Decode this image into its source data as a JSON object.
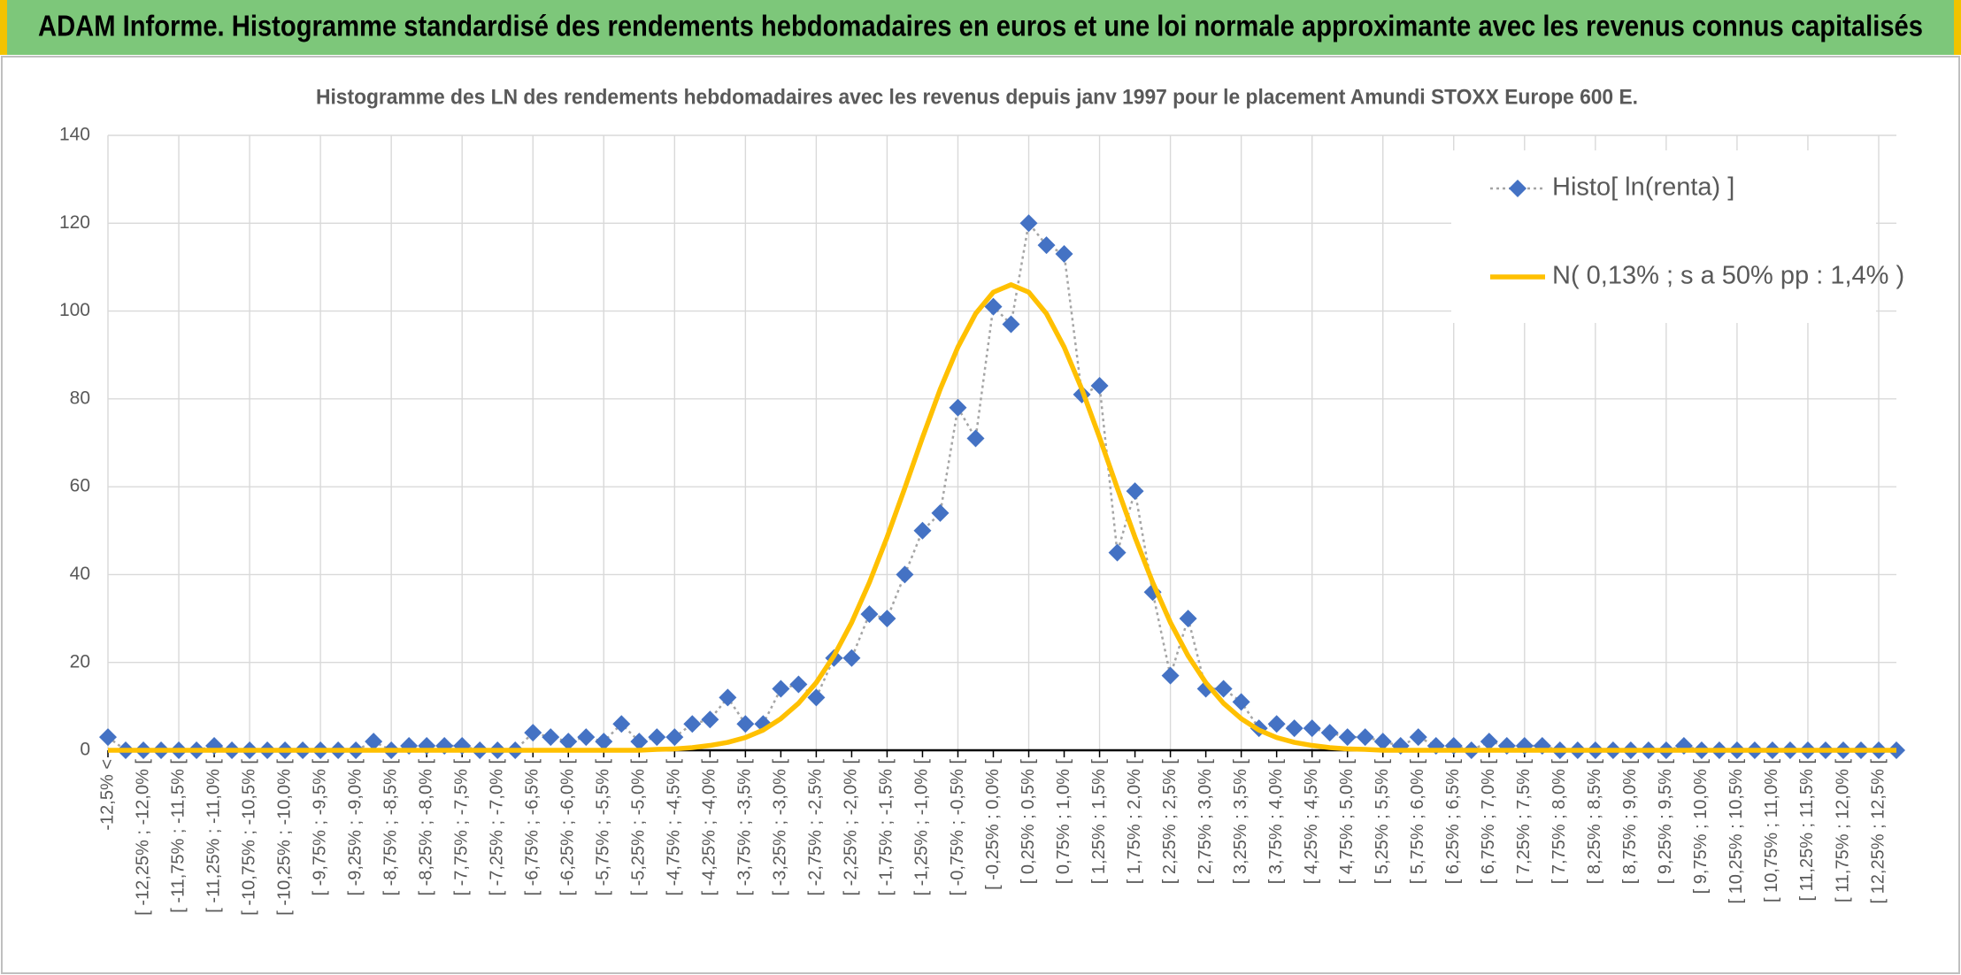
{
  "header": {
    "title": "ADAM Informe. Histogramme standardisé des rendements hebdomadaires en euros et une loi normale approximante avec les revenus connus capitalisés"
  },
  "chart_data": {
    "type": "line",
    "title": "Histogramme des LN des rendements hebdomadaires avec les revenus depuis janv 1997 pour le placement Amundi STOXX Europe 600 E.",
    "categories": [
      "-12,5% <",
      null,
      "[ -12,25% ; -12,0% [",
      null,
      "[ -11,75% ; -11,5% [",
      null,
      "[ -11,25% ; -11,0% [",
      null,
      "[ -10,75% ; -10,5% [",
      null,
      "[ -10,25% ; -10,0% [",
      null,
      "[ -9,75% ; -9,5% [",
      null,
      "[ -9,25% ; -9,0% [",
      null,
      "[ -8,75% ; -8,5% [",
      null,
      "[ -8,25% ; -8,0% [",
      null,
      "[ -7,75% ; -7,5% [",
      null,
      "[ -7,25% ; -7,0% [",
      null,
      "[ -6,75% ; -6,5% [",
      null,
      "[ -6,25% ; -6,0% [",
      null,
      "[ -5,75% ; -5,5% [",
      null,
      "[ -5,25% ; -5,0% [",
      null,
      "[ -4,75% ; -4,5% [",
      null,
      "[ -4,25% ; -4,0% [",
      null,
      "[ -3,75% ; -3,5% [",
      null,
      "[ -3,25% ; -3,0% [",
      null,
      "[ -2,75% ; -2,5% [",
      null,
      "[ -2,25% ; -2,0% [",
      null,
      "[ -1,75% ; -1,5% [",
      null,
      "[ -1,25% ; -1,0% [",
      null,
      "[ -0,75% ; -0,5% [",
      null,
      "[ -0,25% ; 0,0% [",
      null,
      "[ 0,25% ; 0,5% [",
      null,
      "[ 0,75% ; 1,0% [",
      null,
      "[ 1,25% ; 1,5% [",
      null,
      "[ 1,75% ; 2,0% [",
      null,
      "[ 2,25% ; 2,5% [",
      null,
      "[ 2,75% ; 3,0% [",
      null,
      "[ 3,25% ; 3,5% [",
      null,
      "[ 3,75% ; 4,0% [",
      null,
      "[ 4,25% ; 4,5% [",
      null,
      "[ 4,75% ; 5,0% [",
      null,
      "[ 5,25% ; 5,5% [",
      null,
      "[ 5,75% ; 6,0% [",
      null,
      "[ 6,25% ; 6,5% [",
      null,
      "[ 6,75% ; 7,0% [",
      null,
      "[ 7,25% ; 7,5% [",
      null,
      "[ 7,75% ; 8,0% [",
      null,
      "[ 8,25% ; 8,5% [",
      null,
      "[ 8,75% ; 9,0% [",
      null,
      "[ 9,25% ; 9,5% [",
      null,
      "[ 9,75% ; 10,0% [",
      null,
      "[ 10,25% ; 10,5% [",
      null,
      "[ 10,75% ; 11,0% [",
      null,
      "[ 11,25% ; 11,5% [",
      null,
      "[ 11,75% ; 12,0% [",
      null,
      "[ 12,25% ; 12,5% [",
      null
    ],
    "series": [
      {
        "name": "Histo[ ln(renta) ]",
        "color": "#4472c4",
        "line_color": "#a5a5a5",
        "marker": "diamond",
        "values": [
          3,
          0,
          0,
          0,
          0,
          0,
          1,
          0,
          0,
          0,
          0,
          0,
          0,
          0,
          0,
          2,
          0,
          1,
          1,
          1,
          1,
          0,
          0,
          0,
          4,
          3,
          2,
          3,
          2,
          6,
          2,
          3,
          3,
          6,
          7,
          12,
          6,
          6,
          14,
          15,
          12,
          21,
          21,
          31,
          30,
          40,
          50,
          54,
          78,
          71,
          101,
          97,
          120,
          115,
          113,
          81,
          83,
          45,
          59,
          36,
          17,
          30,
          14,
          14,
          11,
          5,
          6,
          5,
          5,
          4,
          3,
          3,
          2,
          1,
          3,
          1,
          1,
          0,
          2,
          1,
          1,
          1,
          0,
          0,
          0,
          0,
          0,
          0,
          0,
          1,
          0,
          0,
          0,
          0,
          0,
          0,
          0,
          0,
          0,
          0,
          0,
          0
        ]
      },
      {
        "name": "N( 0,13% ; s a 50% pp : 1,4% )",
        "color": "#ffc000",
        "marker": "none",
        "values": [
          0,
          0,
          0,
          0,
          0,
          0,
          0,
          0,
          0,
          0,
          0,
          0,
          0,
          0,
          0,
          0,
          0,
          0,
          0,
          0,
          0,
          0,
          0,
          0,
          0,
          0,
          0,
          0,
          0,
          0,
          0,
          0.2,
          0.3,
          0.6,
          1.1,
          1.8,
          2.9,
          4.6,
          7.2,
          10.7,
          15.4,
          21.5,
          29.1,
          38.2,
          48.5,
          59.7,
          71.2,
          82.2,
          91.8,
          99.4,
          104.3,
          106,
          104.3,
          99.4,
          91.8,
          82.2,
          71.2,
          59.7,
          48.5,
          38.2,
          29.1,
          21.5,
          15.4,
          10.7,
          7.2,
          4.6,
          2.9,
          1.8,
          1.1,
          0.6,
          0.3,
          0.2,
          0,
          0,
          0,
          0,
          0,
          0,
          0,
          0,
          0,
          0,
          0,
          0,
          0,
          0,
          0,
          0,
          0,
          0,
          0,
          0,
          0,
          0,
          0,
          0,
          0,
          0,
          0,
          0,
          0,
          0
        ]
      }
    ],
    "ylim": [
      0,
      140
    ],
    "yticks": [
      0,
      20,
      40,
      60,
      80,
      100,
      120,
      140
    ],
    "grid": true,
    "legend": "upper right"
  }
}
